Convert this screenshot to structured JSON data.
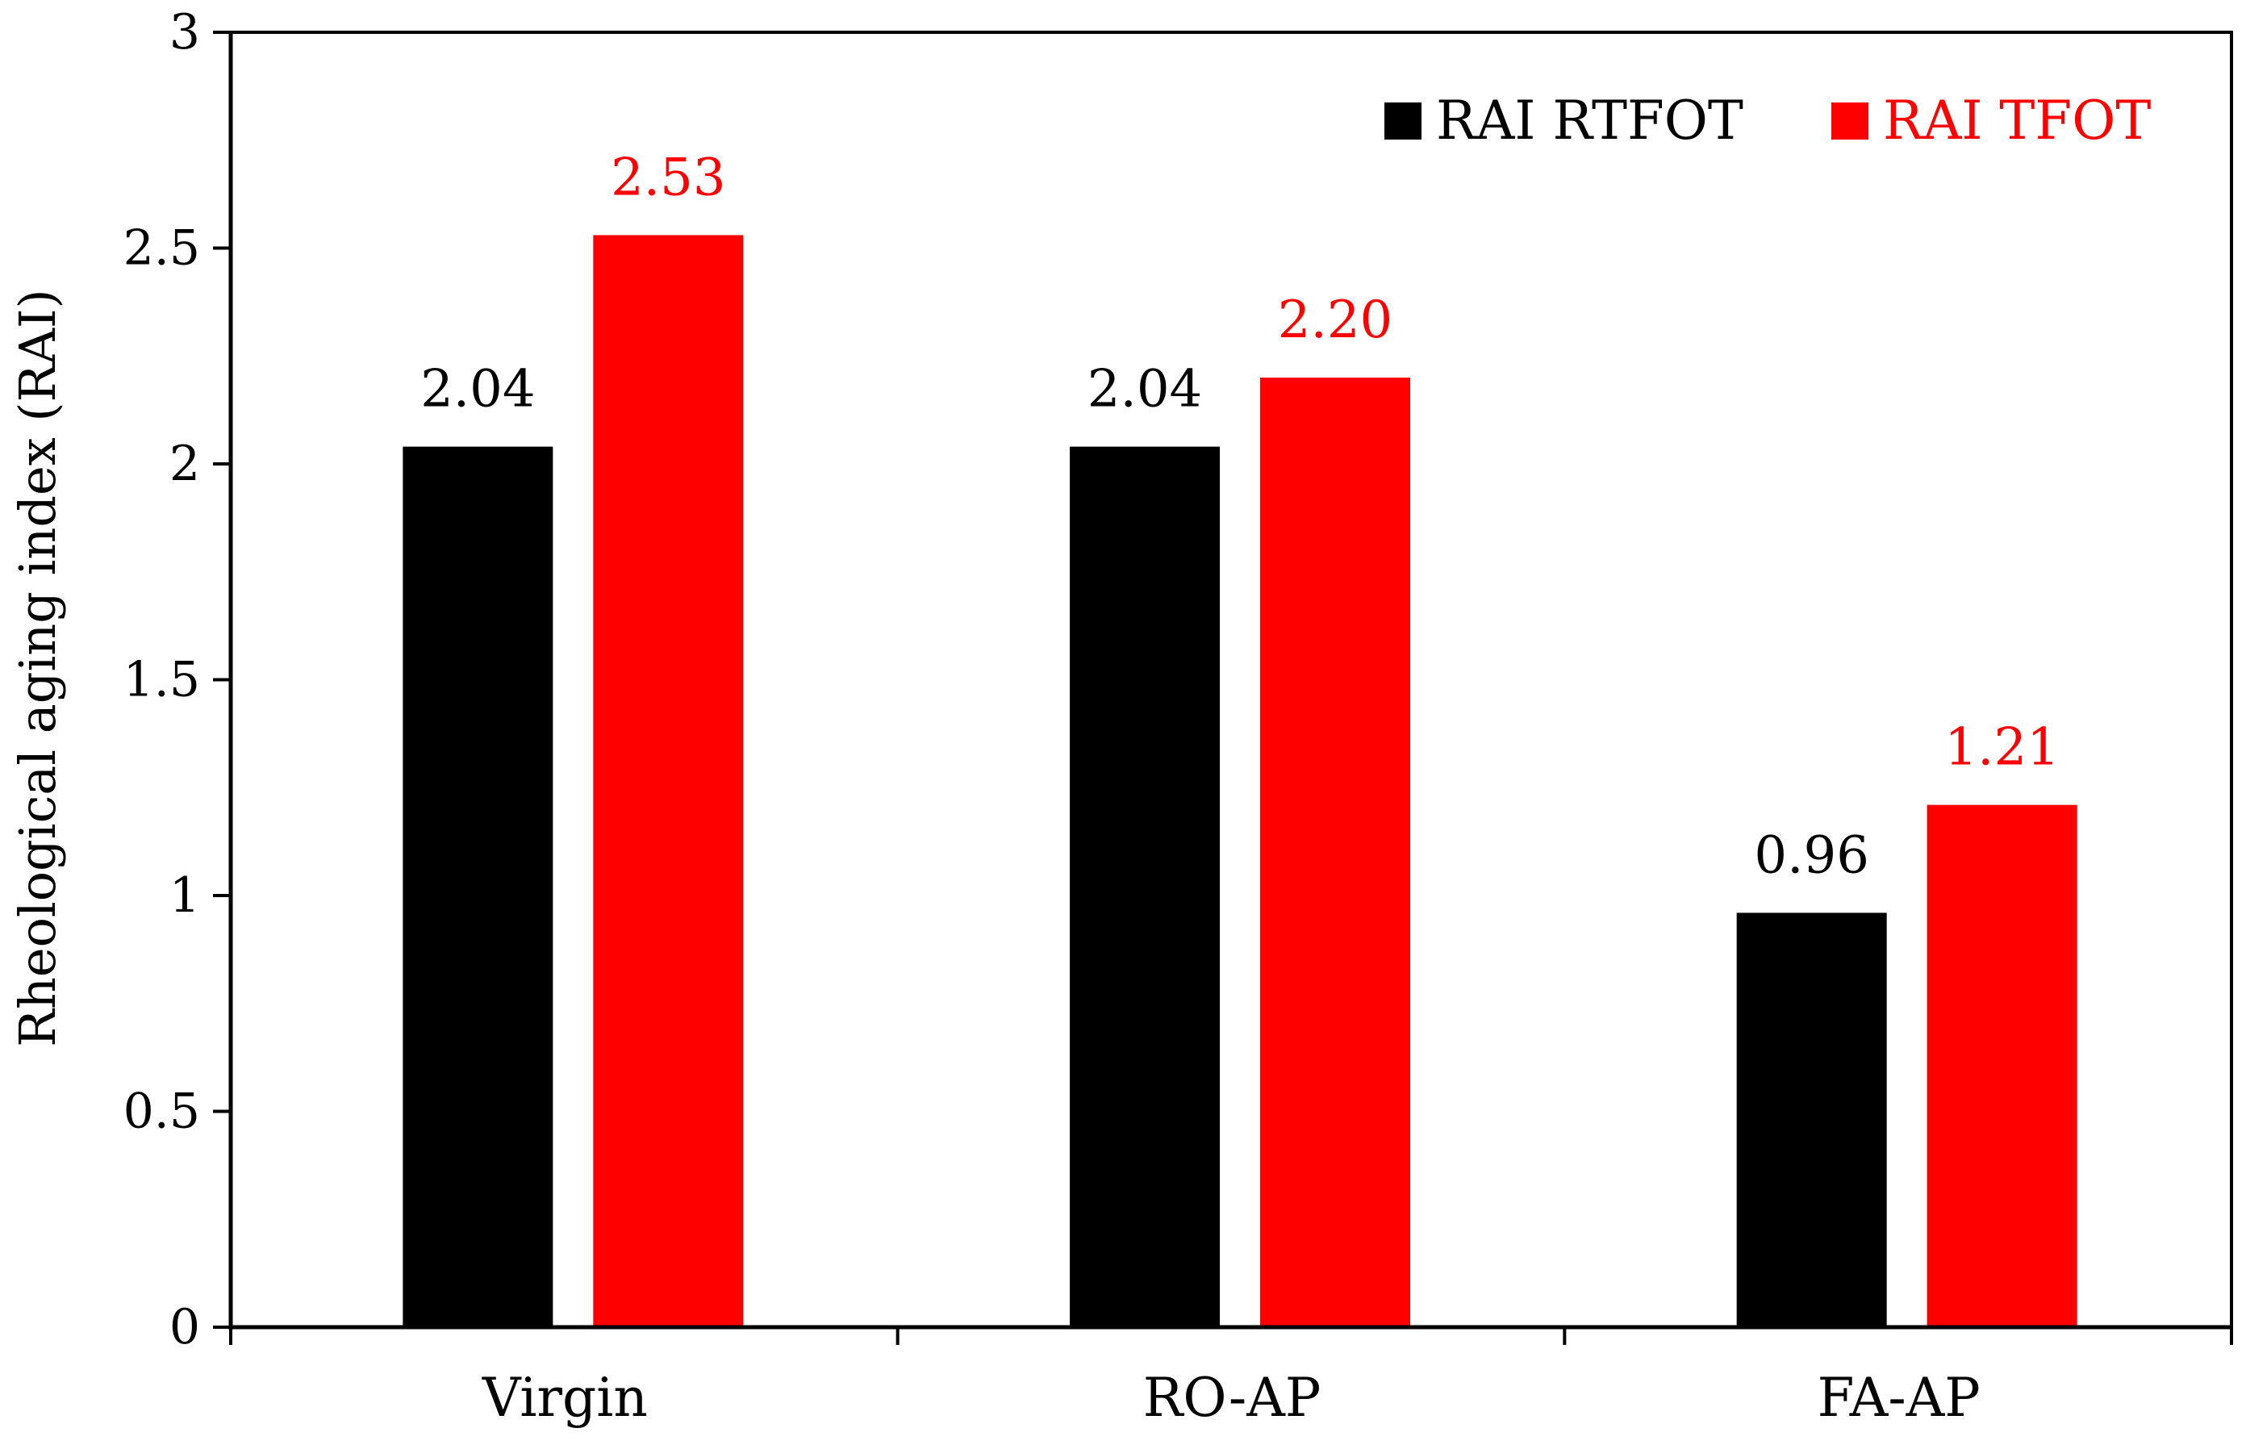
{
  "chart_data": {
    "type": "bar",
    "title": "",
    "xlabel": "",
    "ylabel": "Rheological aging index (RAI)",
    "ylim": [
      0,
      3
    ],
    "yticks": [
      0,
      0.5,
      1,
      1.5,
      2,
      2.5,
      3
    ],
    "ytick_labels": [
      "0",
      "0.5",
      "1",
      "1.5",
      "2",
      "2.5",
      "3"
    ],
    "categories": [
      "Virgin",
      "RO-AP",
      "FA-AP"
    ],
    "series": [
      {
        "name": "RAI RTFOT",
        "color": "#000000",
        "values": [
          2.04,
          2.04,
          0.96
        ],
        "labels": [
          "2.04",
          "2.04",
          "0.96"
        ]
      },
      {
        "name": "RAI TFOT",
        "color": "#ff0000",
        "values": [
          2.53,
          2.2,
          1.21
        ],
        "labels": [
          "2.53",
          "2.20",
          "1.21"
        ]
      }
    ],
    "legend_position": "top-right",
    "grid": false
  }
}
